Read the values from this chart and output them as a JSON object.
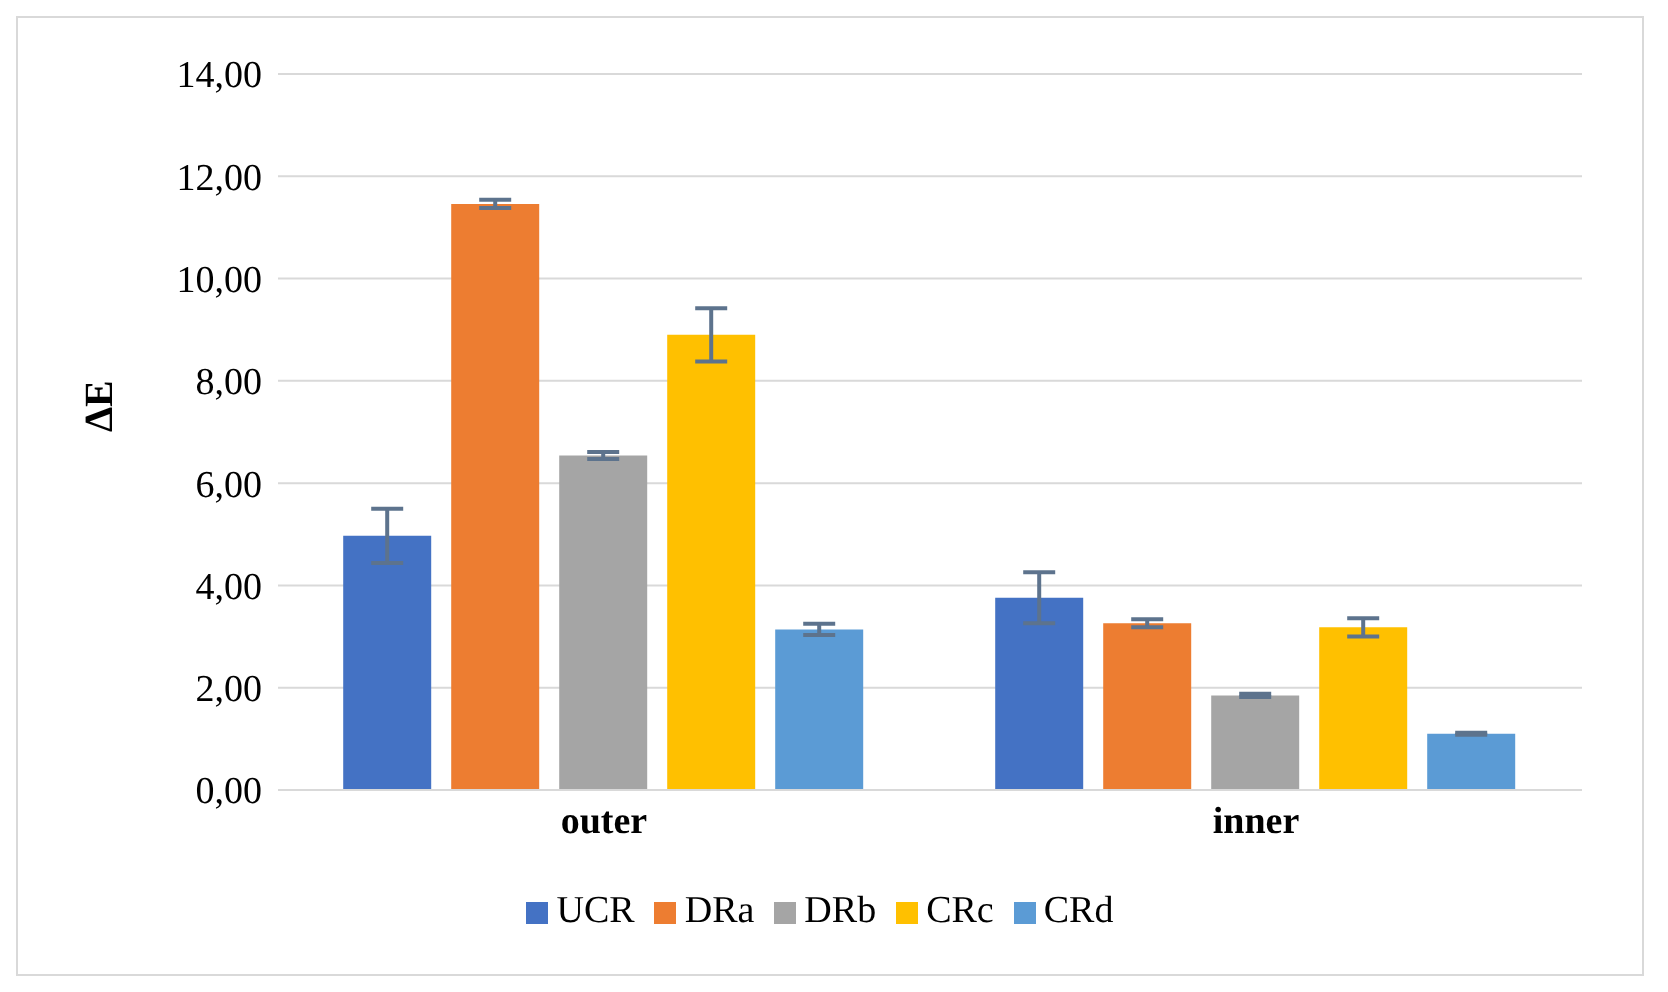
{
  "chart_data": {
    "type": "bar",
    "ylabel": "ΔE",
    "categories": [
      "outer",
      "inner"
    ],
    "series": [
      {
        "name": "UCR",
        "color": "#4472c4",
        "values": [
          4.97,
          3.76
        ],
        "errors": [
          0.53,
          0.5
        ]
      },
      {
        "name": "DRa",
        "color": "#ed7d31",
        "values": [
          11.46,
          3.26
        ],
        "errors": [
          0.08,
          0.08
        ]
      },
      {
        "name": "DRb",
        "color": "#a5a5a5",
        "values": [
          6.54,
          1.85
        ],
        "errors": [
          0.07,
          0.03
        ]
      },
      {
        "name": "CRc",
        "color": "#ffc000",
        "values": [
          8.9,
          3.18
        ],
        "errors": [
          0.52,
          0.18
        ]
      },
      {
        "name": "CRd",
        "color": "#5b9bd5",
        "values": [
          3.14,
          1.1
        ],
        "errors": [
          0.11,
          0.02
        ]
      }
    ],
    "ylim": [
      0,
      14
    ],
    "yticks": [
      {
        "value": 0,
        "label": "0,00"
      },
      {
        "value": 2,
        "label": "2,00"
      },
      {
        "value": 4,
        "label": "4,00"
      },
      {
        "value": 6,
        "label": "6,00"
      },
      {
        "value": 8,
        "label": "8,00"
      },
      {
        "value": 10,
        "label": "10,00"
      },
      {
        "value": 12,
        "label": "12,00"
      },
      {
        "value": 14,
        "label": "14,00"
      }
    ],
    "grid": "y",
    "legend": "bottom"
  }
}
